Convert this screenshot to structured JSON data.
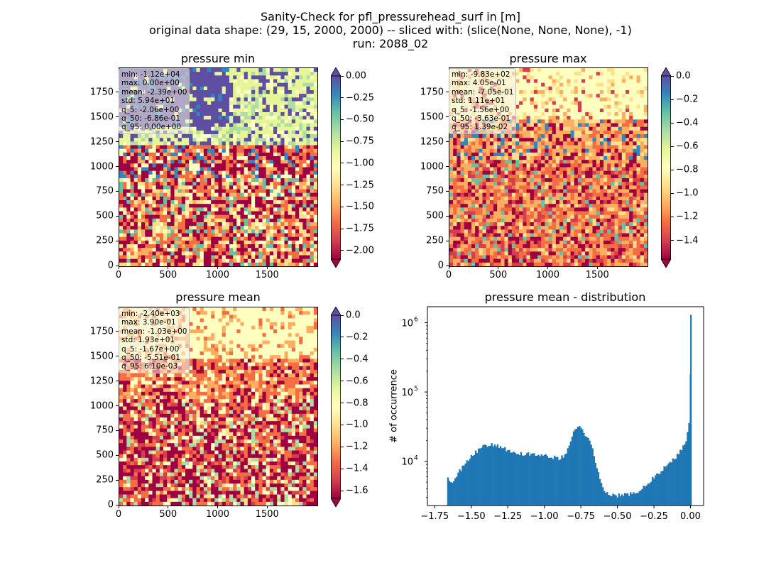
{
  "title_lines": [
    "Sanity-Check for pfl_pressurehead_surf in [m]",
    "original data shape: (29, 15, 2000, 2000) -- sliced with: (slice(None, None, None), -1)",
    "run: 2088_02"
  ],
  "colormap": [
    "#9e0142",
    "#d53e4f",
    "#f46d43",
    "#fdae61",
    "#fee08b",
    "#ffffbf",
    "#e6f598",
    "#abdda4",
    "#66c2a5",
    "#3288bd",
    "#5e4fa2"
  ],
  "hist_color": "#1f77b4",
  "chart_data": [
    {
      "type": "heatmap",
      "title": "pressure min",
      "xlim": [
        0,
        2000
      ],
      "ylim": [
        0,
        2000
      ],
      "xticks": [
        "0",
        "500",
        "1000",
        "1500"
      ],
      "yticks": [
        "0",
        "250",
        "500",
        "750",
        "1000",
        "1250",
        "1500",
        "1750"
      ],
      "colorbar": {
        "vmin": -2.1,
        "vmax": 0.0,
        "extend": "both",
        "ticks": [
          {
            "value": 0.0,
            "label": "0.00"
          },
          {
            "value": -0.25,
            "label": "−0.25"
          },
          {
            "value": -0.5,
            "label": "−0.50"
          },
          {
            "value": -0.75,
            "label": "−0.75"
          },
          {
            "value": -1.0,
            "label": "−1.00"
          },
          {
            "value": -1.25,
            "label": "−1.25"
          },
          {
            "value": -1.5,
            "label": "−1.50"
          },
          {
            "value": -1.75,
            "label": "−1.75"
          },
          {
            "value": -2.0,
            "label": "−2.00"
          }
        ]
      },
      "stats": [
        "min: -1.12e+04",
        "max: 0.00e+00",
        "mean: -2.39e+00",
        "std: 5.94e+01",
        "q_5: -2.06e+00",
        "q_50: -6.86e-01",
        "q_95: 0.00e+00"
      ]
    },
    {
      "type": "heatmap",
      "title": "pressure max",
      "xlim": [
        0,
        2000
      ],
      "ylim": [
        0,
        2000
      ],
      "xticks": [
        "0",
        "500",
        "1000",
        "1500"
      ],
      "yticks": [
        "0",
        "250",
        "500",
        "750",
        "1000",
        "1250",
        "1500",
        "1750"
      ],
      "colorbar": {
        "vmin": -1.56,
        "vmax": 0.0,
        "extend": "both",
        "ticks": [
          {
            "value": 0.0,
            "label": "0.0"
          },
          {
            "value": -0.2,
            "label": "−0.2"
          },
          {
            "value": -0.4,
            "label": "−0.4"
          },
          {
            "value": -0.6,
            "label": "−0.6"
          },
          {
            "value": -0.8,
            "label": "−0.8"
          },
          {
            "value": -1.0,
            "label": "−1.0"
          },
          {
            "value": -1.2,
            "label": "−1.2"
          },
          {
            "value": -1.4,
            "label": "−1.4"
          }
        ]
      },
      "stats": [
        "min: -9.83e+02",
        "max: 4.05e-01",
        "mean: -7.05e-01",
        "std: 1.11e+01",
        "q_5: -1.56e+00",
        "q_50: -3.63e-01",
        "q_95: 1.39e-02"
      ]
    },
    {
      "type": "heatmap",
      "title": "pressure mean",
      "xlim": [
        0,
        2000
      ],
      "ylim": [
        0,
        2000
      ],
      "xticks": [
        "0",
        "500",
        "1000",
        "1500"
      ],
      "yticks": [
        "0",
        "250",
        "500",
        "750",
        "1000",
        "1250",
        "1500",
        "1750"
      ],
      "colorbar": {
        "vmin": -1.67,
        "vmax": 0.0,
        "extend": "both",
        "ticks": [
          {
            "value": 0.0,
            "label": "0.0"
          },
          {
            "value": -0.2,
            "label": "−0.2"
          },
          {
            "value": -0.4,
            "label": "−0.4"
          },
          {
            "value": -0.6,
            "label": "−0.6"
          },
          {
            "value": -0.8,
            "label": "−0.8"
          },
          {
            "value": -1.0,
            "label": "−1.0"
          },
          {
            "value": -1.2,
            "label": "−1.2"
          },
          {
            "value": -1.4,
            "label": "−1.4"
          },
          {
            "value": -1.6,
            "label": "−1.6"
          }
        ]
      },
      "stats": [
        "min: -2.40e+03",
        "max: 3.90e-01",
        "mean: -1.03e+00",
        "std: 1.93e+01",
        "q_5: -1.67e+00",
        "q_50: -5.51e-01",
        "q_95: 6.10e-03"
      ]
    },
    {
      "type": "bar",
      "title": "pressure mean - distribution",
      "ylabel": "# of occurrence",
      "xlabel": "",
      "yscale": "log",
      "xlim": [
        -1.8,
        0.09
      ],
      "ylim": [
        2300,
        1700000
      ],
      "xticks": [
        {
          "value": -1.75,
          "label": "−1.75"
        },
        {
          "value": -1.5,
          "label": "−1.50"
        },
        {
          "value": -1.25,
          "label": "−1.25"
        },
        {
          "value": -1.0,
          "label": "−1.00"
        },
        {
          "value": -0.75,
          "label": "−0.75"
        },
        {
          "value": -0.5,
          "label": "−0.50"
        },
        {
          "value": -0.25,
          "label": "−0.25"
        },
        {
          "value": 0.0,
          "label": "0.00"
        }
      ],
      "yticks": [
        {
          "value": 10000,
          "base": "10",
          "exp": "4"
        },
        {
          "value": 100000,
          "base": "10",
          "exp": "5"
        },
        {
          "value": 1000000,
          "base": "10",
          "exp": "6"
        }
      ],
      "x": [
        -1.665,
        -1.64,
        -1.6,
        -1.55,
        -1.5,
        -1.45,
        -1.4,
        -1.35,
        -1.3,
        -1.25,
        -1.2,
        -1.15,
        -1.1,
        -1.05,
        -1.0,
        -0.95,
        -0.9,
        -0.87,
        -0.84,
        -0.81,
        -0.78,
        -0.76,
        -0.74,
        -0.71,
        -0.68,
        -0.65,
        -0.62,
        -0.6,
        -0.58,
        -0.55,
        -0.52,
        -0.5,
        -0.45,
        -0.4,
        -0.36,
        -0.33,
        -0.3,
        -0.25,
        -0.2,
        -0.15,
        -0.1,
        -0.05,
        -0.03,
        -0.015,
        -0.008,
        -0.004,
        -0.001
      ],
      "values": [
        5500,
        5000,
        6500,
        9000,
        12000,
        15000,
        17000,
        17500,
        16000,
        14500,
        13500,
        12500,
        13000,
        12000,
        12500,
        11500,
        11000,
        12000,
        15000,
        24000,
        33000,
        30000,
        26000,
        23000,
        16000,
        8500,
        5000,
        4000,
        3600,
        3300,
        3200,
        3200,
        3300,
        3400,
        3500,
        4200,
        4800,
        6000,
        7500,
        9000,
        12000,
        17000,
        22000,
        35000,
        60000,
        280000,
        1300000
      ]
    }
  ]
}
